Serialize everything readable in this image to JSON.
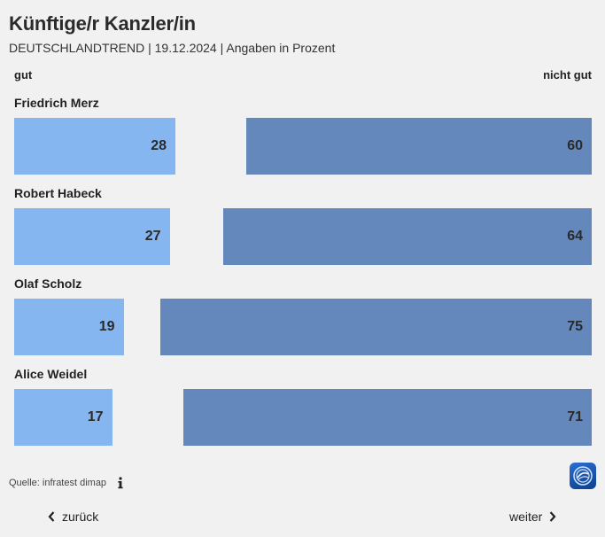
{
  "header": {
    "title": "Künftige/r Kanzler/in",
    "subtitle": "DEUTSCHLANDTREND | 19.12.2024 | Angaben in Prozent"
  },
  "chart_data": {
    "type": "bar",
    "orientation": "horizontal",
    "title": "Künftige/r Kanzler/in",
    "subtitle": "DEUTSCHLANDTREND | 19.12.2024 | Angaben in Prozent",
    "left_label": "gut",
    "right_label": "nicht gut",
    "categories": [
      "Friedrich Merz",
      "Robert Habeck",
      "Olaf Scholz",
      "Alice Weidel"
    ],
    "series": [
      {
        "name": "gut",
        "values": [
          28,
          27,
          19,
          17
        ],
        "color": "#86b6f0"
      },
      {
        "name": "nicht gut",
        "values": [
          60,
          64,
          75,
          71
        ],
        "color": "#6487bc"
      }
    ],
    "xlim": [
      0,
      100
    ]
  },
  "footer": {
    "source": "Quelle: infratest dimap",
    "info_icon": "info-icon",
    "logo_icon": "tagesschau-logo-icon"
  },
  "nav": {
    "prev_label": "zurück",
    "next_label": "weiter"
  }
}
